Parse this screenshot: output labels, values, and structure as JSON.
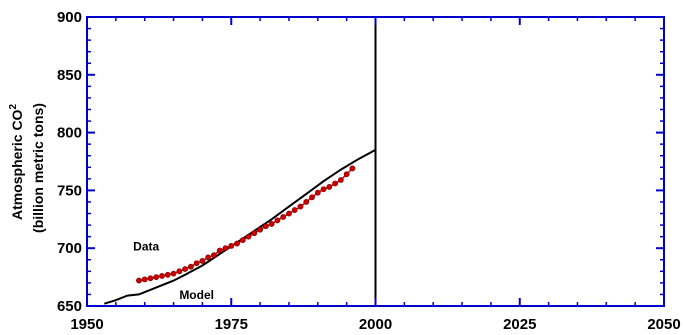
{
  "chart_data": {
    "type": "line",
    "title": "",
    "xlabel": "",
    "ylabel": "Atmospheric CO",
    "ylabel_superscript": "2",
    "ylabel2": "(billion metric tons)",
    "xlim": [
      1950,
      2050
    ],
    "ylim": [
      650,
      900
    ],
    "x_ticks": [
      "1950",
      "1975",
      "2000",
      "2025",
      "2050"
    ],
    "y_ticks": [
      "650",
      "700",
      "750",
      "800",
      "850",
      "900"
    ],
    "grid": false,
    "axis_color": "#0000cc",
    "vertical_line_x": 2000,
    "annotations": [
      {
        "text": "Data",
        "x": 1958,
        "y": 698
      },
      {
        "text": "Model",
        "x": 1966,
        "y": 656
      }
    ],
    "series": [
      {
        "label": "Model",
        "kind": "line",
        "color": "#000000",
        "x": [
          1953,
          1955,
          1957,
          1959,
          1961,
          1963,
          1965,
          1967,
          1970,
          1973,
          1976,
          1979,
          1982,
          1985,
          1988,
          1991,
          1994,
          1997,
          2000
        ],
        "y": [
          652,
          655,
          659,
          660,
          664,
          668,
          672,
          677,
          685,
          695,
          705,
          715,
          725,
          736,
          747,
          758,
          768,
          777,
          785
        ]
      },
      {
        "label": "Data",
        "kind": "scatter-line",
        "color": "#cc0000",
        "x": [
          1959,
          1960,
          1961,
          1962,
          1963,
          1964,
          1965,
          1966,
          1967,
          1968,
          1969,
          1970,
          1971,
          1972,
          1973,
          1974,
          1975,
          1976,
          1977,
          1978,
          1979,
          1980,
          1981,
          1982,
          1983,
          1984,
          1985,
          1986,
          1987,
          1988,
          1989,
          1990,
          1991,
          1992,
          1993,
          1994,
          1995,
          1996
        ],
        "y": [
          672,
          673,
          674,
          675,
          676,
          677,
          678,
          680,
          682,
          684,
          687,
          689,
          692,
          694,
          698,
          700,
          702,
          704,
          707,
          710,
          713,
          716,
          719,
          721,
          724,
          727,
          730,
          733,
          736,
          740,
          744,
          748,
          751,
          753,
          756,
          759,
          764,
          769
        ]
      }
    ]
  }
}
